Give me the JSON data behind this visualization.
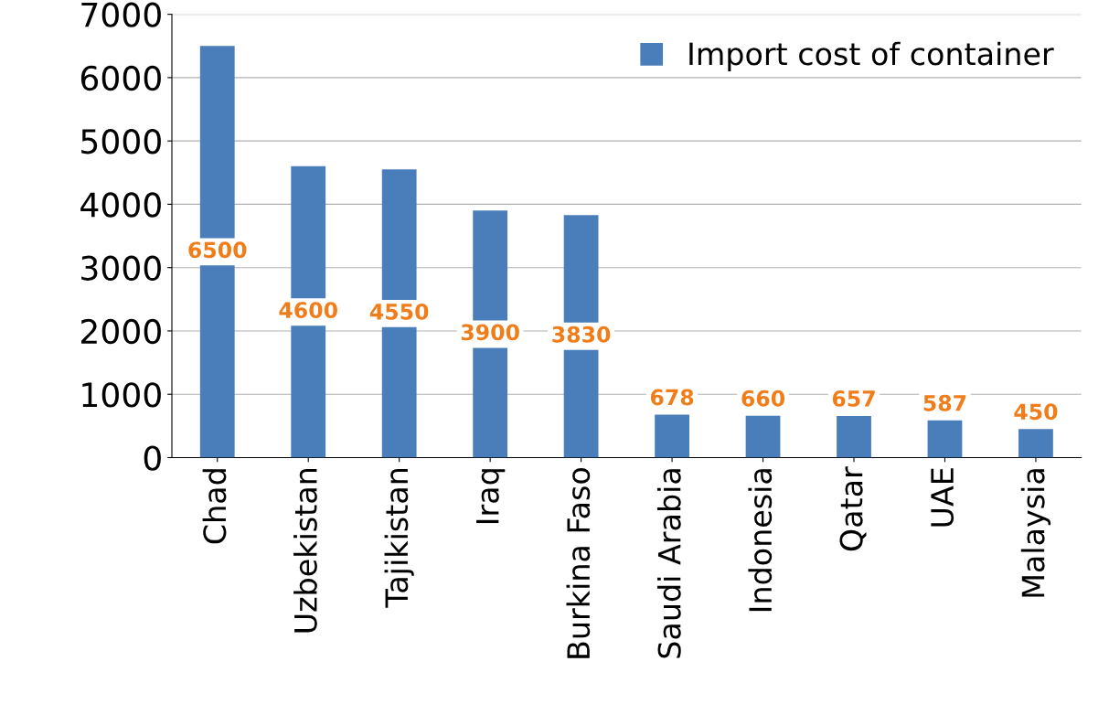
{
  "chart_data": {
    "type": "bar",
    "categories": [
      "Chad",
      "Uzbekistan",
      "Tajikistan",
      "Iraq",
      "Burkina Faso",
      "Saudi Arabia",
      "Indonesia",
      "Qatar",
      "UAE",
      "Malaysia"
    ],
    "series": [
      {
        "name": "Import cost of container",
        "color": "#4a7ebb",
        "values": [
          6500,
          4600,
          4550,
          3900,
          3830,
          678,
          660,
          657,
          587,
          450
        ]
      }
    ],
    "ylim": [
      0,
      7000
    ],
    "yticks": [
      0,
      1000,
      2000,
      3000,
      4000,
      5000,
      6000,
      7000
    ],
    "grid": "y",
    "legend": "top right",
    "data_labels": true
  }
}
